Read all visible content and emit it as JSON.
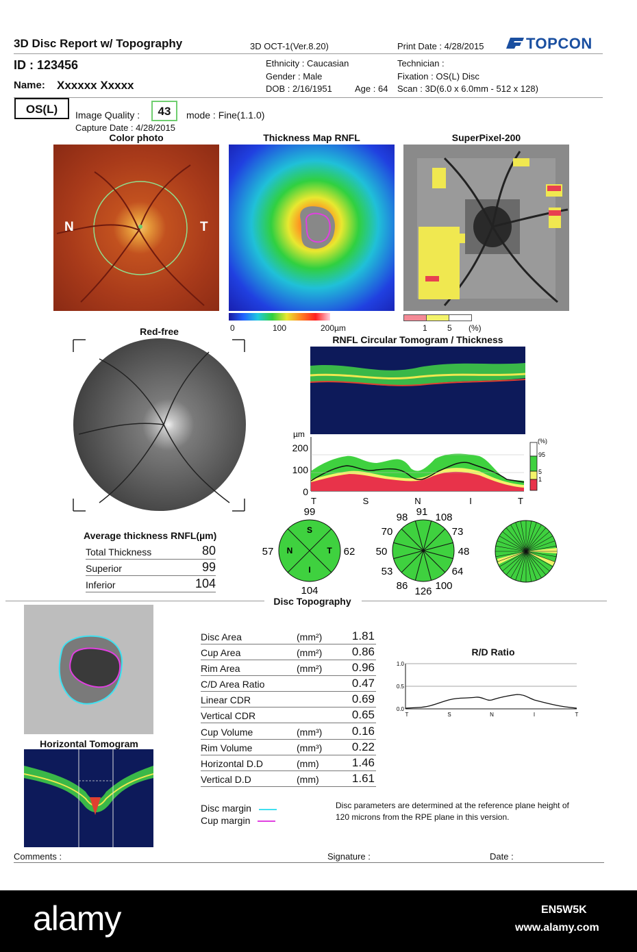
{
  "header": {
    "title": "3D Disc Report w/ Topography",
    "version": "3D OCT-1(Ver.8.20)",
    "print_date": "Print Date : 4/28/2015",
    "brand": "TOPCON",
    "id": "ID : 123456",
    "name_label": "Name:",
    "name_value": "Xxxxxx Xxxxx",
    "ethnicity": "Ethnicity : Caucasian",
    "gender": "Gender : Male",
    "dob": "DOB : 2/16/1951",
    "age": "Age : 64",
    "technician": "Technician :",
    "fixation": "Fixation : OS(L) Disc",
    "scan": "Scan : 3D(6.0 x 6.0mm - 512 x 128)"
  },
  "eye": "OS(L)",
  "image_quality_label": "Image Quality :",
  "image_quality_value": "43",
  "mode": "mode : Fine(1.1.0)",
  "capture_date": "Capture Date : 4/28/2015",
  "panels": {
    "color_photo": "Color photo",
    "thickness_map": "Thickness Map RNFL",
    "superpixel": "SuperPixel-200",
    "red_free": "Red-free",
    "circular": "RNFL Circular Tomogram / Thickness",
    "disc_topography": "Disc Topography",
    "horizontal_tomogram": "Horizontal Tomogram",
    "rd_ratio": "R/D Ratio"
  },
  "color_photo_labels": {
    "n": "N",
    "t": "T"
  },
  "thickness_scale": {
    "t0": "0",
    "t100": "100",
    "t200": "200µm"
  },
  "superpixel_scale": {
    "t1": "1",
    "t5": "5",
    "unit": "(%)"
  },
  "tsnit_chart": {
    "y_unit": "µm",
    "y_ticks": [
      "200",
      "100",
      "0"
    ],
    "x_ticks": [
      "T",
      "S",
      "N",
      "I",
      "T"
    ],
    "legend_unit": "(%)",
    "legend": [
      "95",
      "5",
      "1"
    ],
    "colors": {
      "red": "#e8334a",
      "yellow": "#f3f36a",
      "green": "#3fd13f",
      "white": "#ffffff"
    }
  },
  "quadrants": {
    "top": "99",
    "left": "57",
    "right": "62",
    "bottom": "104",
    "S": "S",
    "N": "N",
    "T": "T",
    "I": "I"
  },
  "clock_hours": {
    "h1": "91",
    "h2": "108",
    "h3": "73",
    "h4": "48",
    "h5": "64",
    "h6": "100",
    "h7": "126",
    "h8": "86",
    "h9": "53",
    "h10": "50",
    "h11": "70",
    "h12": "98"
  },
  "avg_thickness": {
    "title": "Average thickness RNFL(µm)",
    "rows": [
      {
        "label": "Total Thickness",
        "value": "80"
      },
      {
        "label": "Superior",
        "value": "99"
      },
      {
        "label": "Inferior",
        "value": "104"
      }
    ]
  },
  "disc_params": [
    {
      "label": "Disc Area",
      "unit": "(mm²)",
      "value": "1.81"
    },
    {
      "label": "Cup Area",
      "unit": "(mm²)",
      "value": "0.86"
    },
    {
      "label": "Rim Area",
      "unit": "(mm²)",
      "value": "0.96"
    },
    {
      "label": "C/D Area Ratio",
      "unit": "",
      "value": "0.47"
    },
    {
      "label": "Linear CDR",
      "unit": "",
      "value": "0.69"
    },
    {
      "label": "Vertical CDR",
      "unit": "",
      "value": "0.65"
    },
    {
      "label": "Cup Volume",
      "unit": "(mm³)",
      "value": "0.16"
    },
    {
      "label": "Rim Volume",
      "unit": "(mm³)",
      "value": "0.22"
    },
    {
      "label": "Horizontal D.D",
      "unit": "(mm)",
      "value": "1.46"
    },
    {
      "label": "Vertical D.D",
      "unit": "(mm)",
      "value": "1.61"
    }
  ],
  "rd_chart": {
    "y_ticks": [
      "1.0",
      "0.5",
      "0.0"
    ],
    "x_ticks": [
      "T",
      "S",
      "N",
      "I",
      "T"
    ]
  },
  "margins": {
    "disc": "Disc margin",
    "cup": "Cup margin",
    "disc_color": "#40e0f0",
    "cup_color": "#e040e0"
  },
  "note_line1": "Disc parameters are determined at the reference plane height of",
  "note_line2": "120 microns from the RPE plane in this version.",
  "footer": {
    "comments": "Comments :",
    "signature": "Signature :",
    "date": "Date :"
  },
  "watermark": {
    "brand": "alamy",
    "image_id": "EN5W5K",
    "url": "www.alamy.com"
  }
}
